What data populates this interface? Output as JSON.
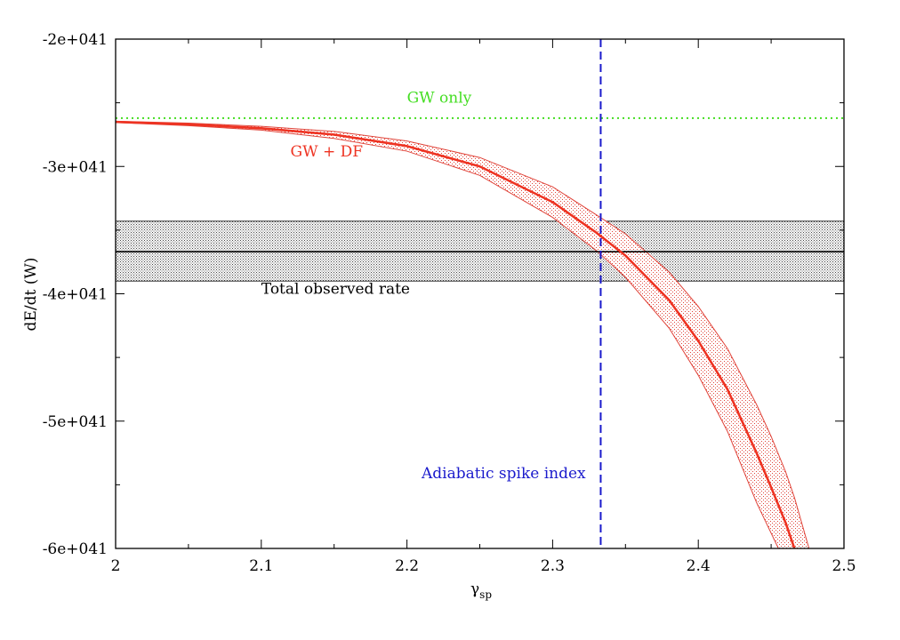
{
  "chart_data": {
    "type": "line",
    "title": "",
    "xlabel": "γ",
    "xlabel_sub": "sp",
    "ylabel": "dE/dt (W)",
    "xlim": [
      2.0,
      2.5
    ],
    "ylim": [
      -6e+41,
      -2e+41
    ],
    "x_ticks": [
      2.0,
      2.1,
      2.2,
      2.3,
      2.4,
      2.5
    ],
    "x_tick_labels": [
      "2",
      "2.1",
      "2.2",
      "2.3",
      "2.4",
      "2.5"
    ],
    "y_ticks": [
      -2e+41,
      -3e+41,
      -4e+41,
      -5e+41,
      -6e+41
    ],
    "y_tick_labels": [
      "-2e+041",
      "-3e+041",
      "-4e+041",
      "-5e+041",
      "-6e+041"
    ],
    "grid": false,
    "series": [
      {
        "name": "GW only",
        "style": "dotted",
        "color": "#44dd22",
        "x": [
          2.0,
          2.5
        ],
        "y": [
          -2.62e+41,
          -2.62e+41
        ]
      },
      {
        "name": "GW + DF",
        "style": "solid",
        "color": "#ee3322",
        "x": [
          2.0,
          2.05,
          2.1,
          2.15,
          2.2,
          2.25,
          2.3,
          2.33,
          2.35,
          2.38,
          2.4,
          2.42,
          2.44,
          2.45,
          2.46,
          2.466
        ],
        "y": [
          -2.65e+41,
          -2.67e+41,
          -2.7e+41,
          -2.75e+41,
          -2.84e+41,
          -3e+41,
          -3.28e+41,
          -3.52e+41,
          -3.7e+41,
          -4.05e+41,
          -4.37e+41,
          -4.75e+41,
          -5.25e+41,
          -5.52e+41,
          -5.8e+41,
          -6e+41
        ],
        "band_upper": [
          -2.645e+41,
          -2.66e+41,
          -2.685e+41,
          -2.725e+41,
          -2.8e+41,
          -2.93e+41,
          -3.16e+41,
          -3.38e+41,
          -3.53e+41,
          -3.83e+41,
          -4.1e+41,
          -4.43e+41,
          -4.87e+41,
          -5.12e+41,
          -5.4e+41,
          -5.6e+41,
          -6e+41
        ],
        "band_upper_x": [
          2.0,
          2.05,
          2.1,
          2.15,
          2.2,
          2.25,
          2.3,
          2.33,
          2.35,
          2.38,
          2.4,
          2.42,
          2.44,
          2.45,
          2.46,
          2.466,
          2.476
        ],
        "band_lower": [
          -2.655e+41,
          -2.68e+41,
          -2.715e+41,
          -2.78e+41,
          -2.88e+41,
          -3.07e+41,
          -3.4e+41,
          -3.66e+41,
          -3.87e+41,
          -4.27e+41,
          -4.64e+41,
          -5.08e+41,
          -5.64e+41,
          -6e+41
        ],
        "band_lower_x": [
          2.0,
          2.05,
          2.1,
          2.15,
          2.2,
          2.25,
          2.3,
          2.33,
          2.35,
          2.38,
          2.4,
          2.42,
          2.44,
          2.455
        ]
      },
      {
        "name": "Total observed rate",
        "style": "solid",
        "color": "#000000",
        "x": [
          2.0,
          2.5
        ],
        "y": [
          -3.67e+41,
          -3.67e+41
        ],
        "band": [
          -3.43e+41,
          -3.9e+41
        ]
      },
      {
        "name": "Adiabatic spike index",
        "style": "dashed",
        "color": "#1a1acc",
        "x": [
          2.333,
          2.333
        ],
        "y": [
          -2e+41,
          -6e+41
        ]
      }
    ],
    "annotations": [
      {
        "text": "GW only",
        "x": 2.2,
        "y": -2.5e+41,
        "color": "#44dd22"
      },
      {
        "text": "GW + DF",
        "x": 2.12,
        "y": -2.92e+41,
        "color": "#ee3322"
      },
      {
        "text": "Total observed rate",
        "x": 2.1,
        "y": -4e+41,
        "color": "#000000"
      },
      {
        "text": "Adiabatic spike index",
        "x": 2.21,
        "y": -5.45e+41,
        "color": "#1a1acc"
      }
    ]
  }
}
